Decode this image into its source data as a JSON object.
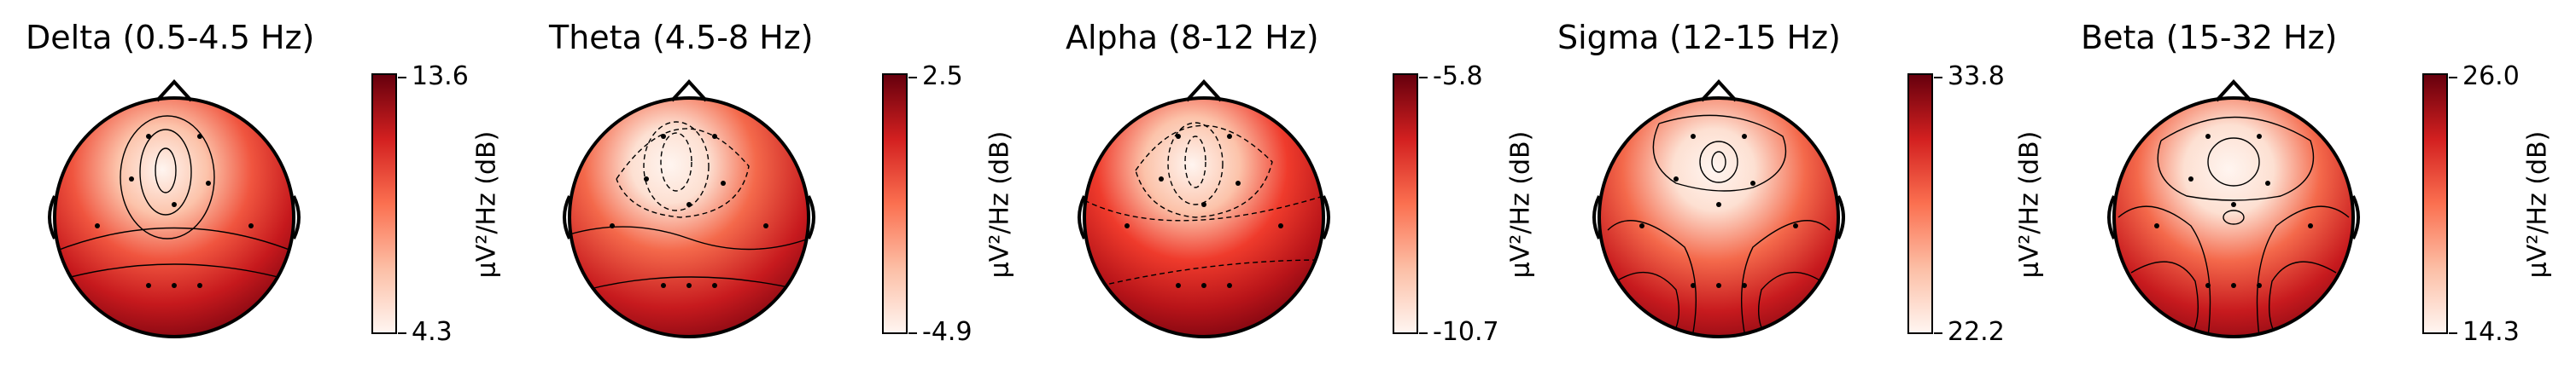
{
  "chart_data": [
    {
      "type": "topomap",
      "title": "Delta (0.5-4.5 Hz)",
      "colorbar": {
        "max": "13.6",
        "min": "4.3",
        "label": "µV²/Hz (dB)"
      },
      "colormap": "Reds"
    },
    {
      "type": "topomap",
      "title": "Theta (4.5-8 Hz)",
      "colorbar": {
        "max": "2.5",
        "min": "-4.9",
        "label": "µV²/Hz (dB)"
      },
      "colormap": "Reds"
    },
    {
      "type": "topomap",
      "title": "Alpha (8-12 Hz)",
      "colorbar": {
        "max": "-5.8",
        "min": "-10.7",
        "label": "µV²/Hz (dB)"
      },
      "colormap": "Reds"
    },
    {
      "type": "topomap",
      "title": "Sigma (12-15 Hz)",
      "colorbar": {
        "max": "33.8",
        "min": "22.2",
        "label": "µV²/Hz (dB)"
      },
      "colormap": "Reds"
    },
    {
      "type": "topomap",
      "title": "Beta (15-32 Hz)",
      "colorbar": {
        "max": "26.0",
        "min": "14.3",
        "label": "µV²/Hz (dB)"
      },
      "colormap": "Reds"
    }
  ],
  "colors": {
    "low": "#fff5f0",
    "mid": "#fb7050",
    "high": "#67000d"
  }
}
